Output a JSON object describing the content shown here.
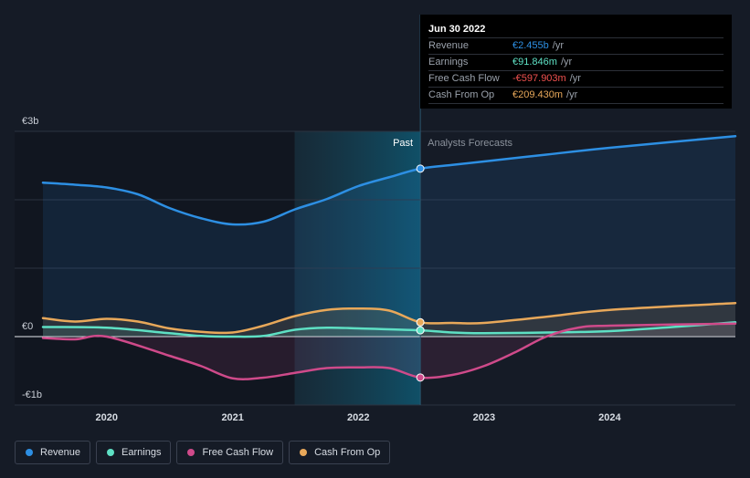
{
  "chart_data": {
    "type": "line",
    "y_unit": "€",
    "ylim": [
      -1000000000,
      3000000000
    ],
    "xlim": [
      "2019-06-30",
      "2024-12-31"
    ],
    "y_ticks": [
      {
        "value": 3000000000,
        "label": "€3b"
      },
      {
        "value": 0,
        "label": "€0"
      },
      {
        "value": -1000000000,
        "label": "-€1b"
      }
    ],
    "x_ticks": [
      {
        "date": "2020-01-01",
        "label": "2020"
      },
      {
        "date": "2021-01-01",
        "label": "2021"
      },
      {
        "date": "2022-01-01",
        "label": "2022"
      },
      {
        "date": "2023-01-01",
        "label": "2023"
      },
      {
        "date": "2024-01-01",
        "label": "2024"
      }
    ],
    "past_label": "Past",
    "forecast_label": "Analysts Forecasts",
    "highlight_period": [
      "2021-06-30",
      "2022-06-30"
    ],
    "divider_date": "2022-06-30",
    "grid": true,
    "series": [
      {
        "name": "Revenue",
        "color": "#2d8fe3",
        "points": [
          [
            "2019-06-30",
            2250000000
          ],
          [
            "2019-10-01",
            2220000000
          ],
          [
            "2020-01-01",
            2180000000
          ],
          [
            "2020-04-01",
            2080000000
          ],
          [
            "2020-07-01",
            1880000000
          ],
          [
            "2020-10-01",
            1730000000
          ],
          [
            "2021-01-01",
            1640000000
          ],
          [
            "2021-04-01",
            1680000000
          ],
          [
            "2021-07-01",
            1860000000
          ],
          [
            "2021-10-01",
            2010000000
          ],
          [
            "2022-01-01",
            2200000000
          ],
          [
            "2022-04-01",
            2330000000
          ],
          [
            "2022-06-30",
            2455000000
          ],
          [
            "2022-10-01",
            2510000000
          ],
          [
            "2023-01-01",
            2560000000
          ],
          [
            "2023-07-01",
            2660000000
          ],
          [
            "2024-01-01",
            2760000000
          ],
          [
            "2024-12-31",
            2930000000
          ]
        ]
      },
      {
        "name": "Earnings",
        "color": "#5ee0c4",
        "points": [
          [
            "2019-06-30",
            140000000
          ],
          [
            "2020-01-01",
            130000000
          ],
          [
            "2020-07-01",
            50000000
          ],
          [
            "2020-10-01",
            10000000
          ],
          [
            "2021-01-01",
            0
          ],
          [
            "2021-04-01",
            10000000
          ],
          [
            "2021-07-01",
            100000000
          ],
          [
            "2021-10-01",
            130000000
          ],
          [
            "2022-01-01",
            120000000
          ],
          [
            "2022-06-30",
            91846000
          ],
          [
            "2022-10-01",
            60000000
          ],
          [
            "2023-01-01",
            50000000
          ],
          [
            "2023-07-01",
            60000000
          ],
          [
            "2024-01-01",
            80000000
          ],
          [
            "2024-07-01",
            140000000
          ],
          [
            "2024-12-31",
            210000000
          ]
        ]
      },
      {
        "name": "Free Cash Flow",
        "color": "#cf4a8a",
        "points": [
          [
            "2019-06-30",
            -20000000
          ],
          [
            "2019-10-01",
            -40000000
          ],
          [
            "2020-01-01",
            0
          ],
          [
            "2020-07-01",
            -280000000
          ],
          [
            "2020-10-01",
            -430000000
          ],
          [
            "2021-01-01",
            -610000000
          ],
          [
            "2021-04-01",
            -600000000
          ],
          [
            "2021-07-01",
            -530000000
          ],
          [
            "2021-10-01",
            -460000000
          ],
          [
            "2022-01-01",
            -450000000
          ],
          [
            "2022-04-01",
            -460000000
          ],
          [
            "2022-06-30",
            -597903000
          ],
          [
            "2022-10-01",
            -560000000
          ],
          [
            "2023-01-01",
            -430000000
          ],
          [
            "2023-04-01",
            -230000000
          ],
          [
            "2023-07-01",
            0
          ],
          [
            "2023-10-01",
            130000000
          ],
          [
            "2024-01-01",
            160000000
          ],
          [
            "2024-12-31",
            190000000
          ]
        ]
      },
      {
        "name": "Cash From Op",
        "color": "#e8a85a",
        "points": [
          [
            "2019-06-30",
            270000000
          ],
          [
            "2019-10-01",
            220000000
          ],
          [
            "2020-01-01",
            260000000
          ],
          [
            "2020-04-01",
            220000000
          ],
          [
            "2020-07-01",
            120000000
          ],
          [
            "2020-10-01",
            70000000
          ],
          [
            "2021-01-01",
            60000000
          ],
          [
            "2021-04-01",
            160000000
          ],
          [
            "2021-07-01",
            300000000
          ],
          [
            "2021-10-01",
            390000000
          ],
          [
            "2022-01-01",
            410000000
          ],
          [
            "2022-04-01",
            380000000
          ],
          [
            "2022-06-30",
            209430000
          ],
          [
            "2022-10-01",
            200000000
          ],
          [
            "2023-01-01",
            200000000
          ],
          [
            "2023-07-01",
            290000000
          ],
          [
            "2024-01-01",
            390000000
          ],
          [
            "2024-12-31",
            490000000
          ]
        ]
      }
    ]
  },
  "tooltip": {
    "date": "Jun 30 2022",
    "rows": [
      {
        "label": "Revenue",
        "value": "€2.455b",
        "unit": "/yr",
        "color": "#2d8fe3"
      },
      {
        "label": "Earnings",
        "value": "€91.846m",
        "unit": "/yr",
        "color": "#5ee0c4"
      },
      {
        "label": "Free Cash Flow",
        "value": "-€597.903m",
        "unit": "/yr",
        "color": "#f0514f"
      },
      {
        "label": "Cash From Op",
        "value": "€209.430m",
        "unit": "/yr",
        "color": "#e8a85a"
      }
    ]
  },
  "legend": {
    "items": [
      {
        "label": "Revenue",
        "color": "#2d8fe3"
      },
      {
        "label": "Earnings",
        "color": "#5ee0c4"
      },
      {
        "label": "Free Cash Flow",
        "color": "#cf4a8a"
      },
      {
        "label": "Cash From Op",
        "color": "#e8a85a"
      }
    ]
  }
}
